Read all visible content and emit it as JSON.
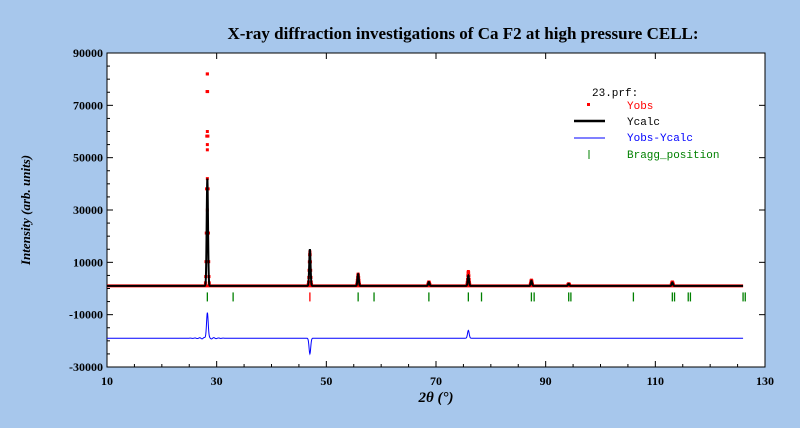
{
  "chart_data": {
    "type": "line",
    "title": "X-ray diffraction investigations of Ca F2 at high pressure     CELL:",
    "xlabel": "2θ (°)",
    "ylabel": "Intensity (arb. units)",
    "xlim": [
      10,
      130
    ],
    "ylim": [
      -30000,
      90000
    ],
    "x_ticks": [
      "10",
      "30",
      "50",
      "70",
      "90",
      "110",
      "130"
    ],
    "y_ticks": [
      "90000",
      "70000",
      "50000",
      "30000",
      "10000",
      "-10000",
      "-30000"
    ],
    "x_tick_values": [
      10,
      30,
      50,
      70,
      90,
      110,
      130
    ],
    "y_tick_values": [
      90000,
      70000,
      50000,
      30000,
      10000,
      -10000,
      -30000
    ],
    "x_range_data": [
      10,
      126
    ],
    "baseline": 1000,
    "diff_offset": -19000,
    "legend_title": "23.prf:",
    "legend_position": "top-right",
    "series": [
      {
        "name": "Yobs",
        "color": "#ff0000",
        "style": "markers"
      },
      {
        "name": "Ycalc",
        "color": "#000000",
        "style": "line"
      },
      {
        "name": "Yobs-Ycalc",
        "color": "#0000ff",
        "style": "line"
      },
      {
        "name": "Bragg_position",
        "color": "#008000",
        "style": "ticks"
      }
    ],
    "peaks": [
      {
        "x": 28.3,
        "obs": 82000,
        "calc": 42000
      },
      {
        "x": 47.0,
        "obs": 14000,
        "calc": 15000
      },
      {
        "x": 55.8,
        "obs": 5500,
        "calc": 5500
      },
      {
        "x": 68.7,
        "obs": 2500,
        "calc": 2500
      },
      {
        "x": 75.9,
        "obs": 6500,
        "calc": 5000
      },
      {
        "x": 87.4,
        "obs": 3200,
        "calc": 3000
      },
      {
        "x": 94.2,
        "obs": 1800,
        "calc": 1800
      },
      {
        "x": 113.1,
        "obs": 2500,
        "calc": 2300
      }
    ],
    "yobs_peak_points": [
      82000,
      60000,
      55000,
      53000,
      42000,
      30000,
      20000
    ],
    "diff_features": [
      {
        "x": 28.3,
        "value": 10000
      },
      {
        "x": 47.0,
        "value": -6000
      },
      {
        "x": 75.9,
        "value": 3000
      }
    ],
    "bragg_positions_row1": [
      28.3,
      47.0,
      55.8,
      68.7,
      75.9,
      87.4,
      94.2,
      106.0,
      113.1,
      116.0,
      126.0
    ],
    "bragg_positions_row1_colors": [
      "#008000",
      "#ff0000",
      "#008000",
      "#008000",
      "#008000",
      "#008000",
      "#008000",
      "#008000",
      "#008000",
      "#008000",
      "#008000"
    ],
    "bragg_positions_row2": [
      33.0,
      58.7,
      78.3,
      87.9,
      94.6,
      113.5,
      116.4,
      126.4
    ]
  }
}
